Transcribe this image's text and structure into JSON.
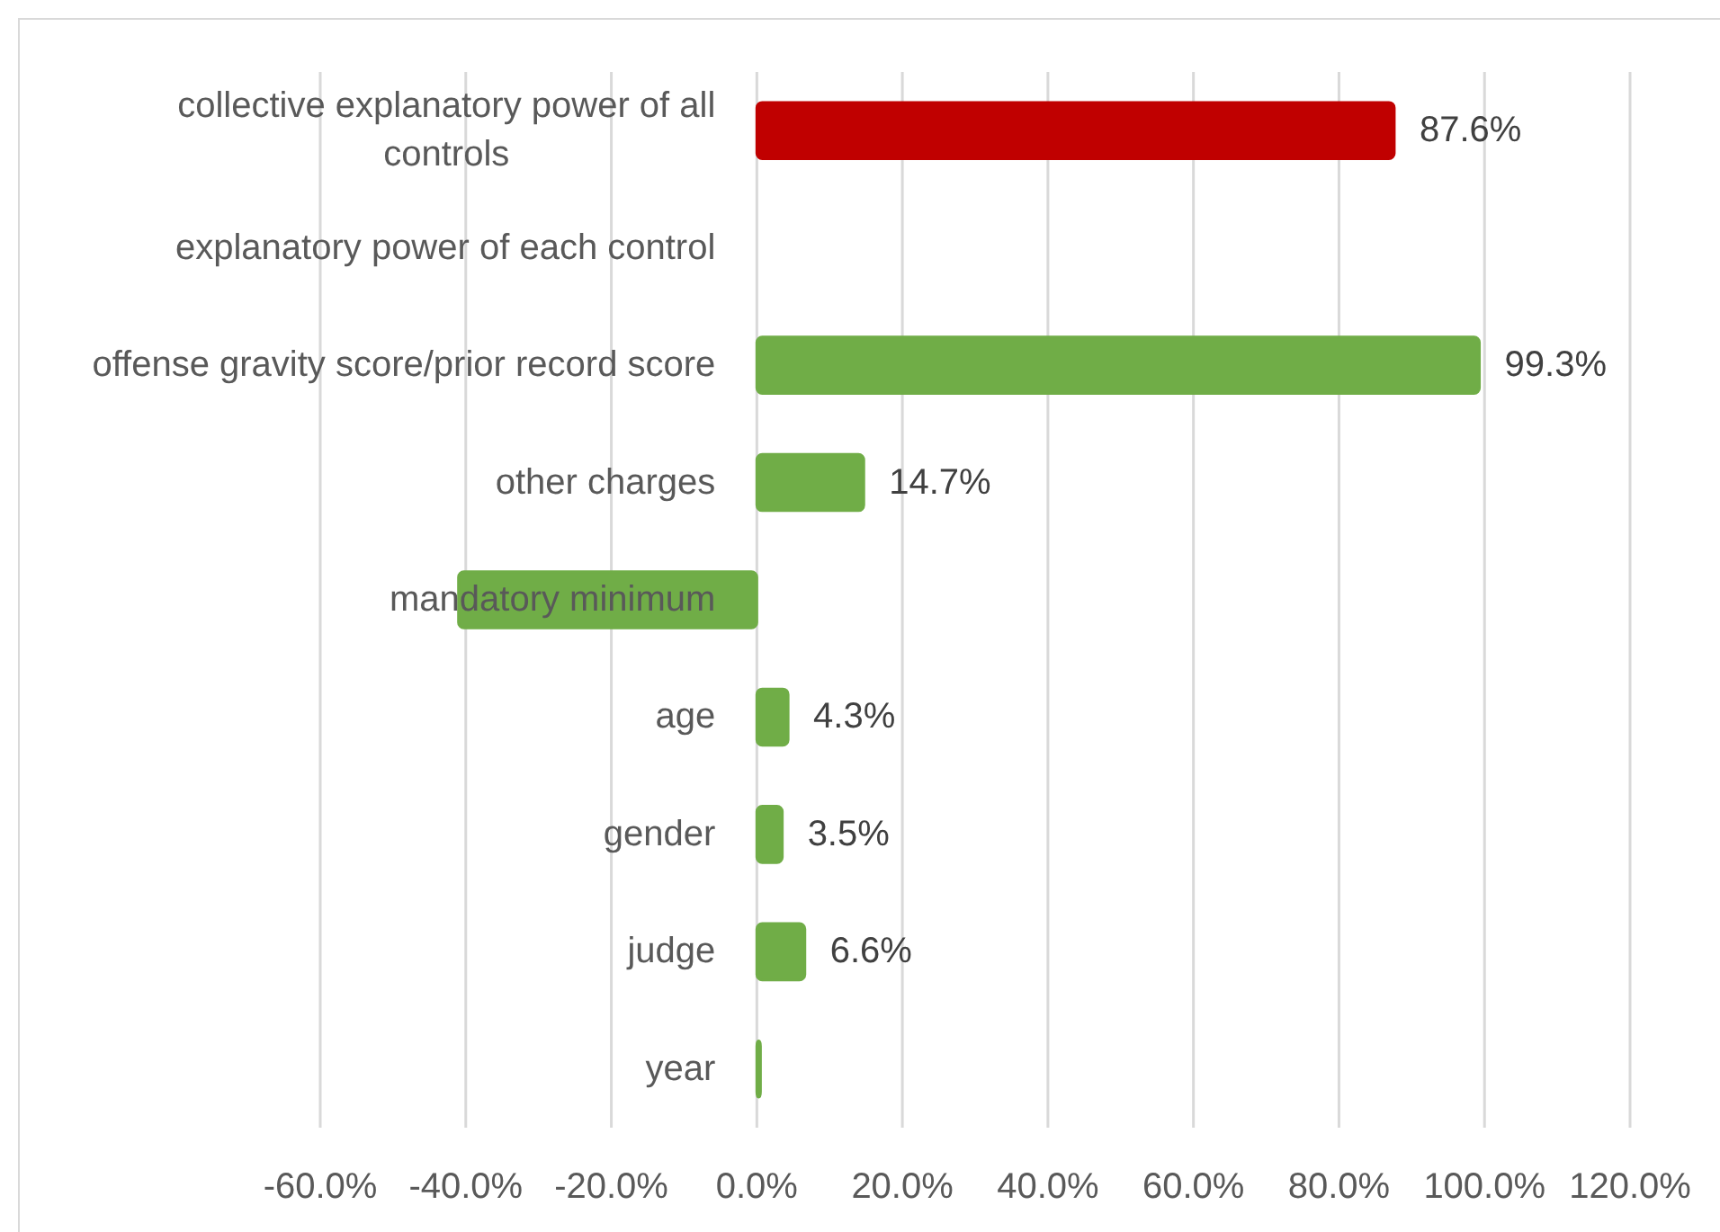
{
  "chart_data": {
    "type": "bar",
    "orientation": "horizontal",
    "categories": [
      "collective explanatory power of all controls",
      "explanatory power of each control",
      "offense gravity score/prior record score",
      "other charges",
      "mandatory minimum",
      "age",
      "gender",
      "judge",
      "year"
    ],
    "values": [
      87.6,
      null,
      99.3,
      14.7,
      -41,
      4.3,
      3.5,
      6.6,
      0.5
    ],
    "colors": [
      "#c00000",
      null,
      "#70ad47",
      "#70ad47",
      "#70ad47",
      "#70ad47",
      "#70ad47",
      "#70ad47",
      "#70ad47"
    ],
    "value_labels": [
      "87.6%",
      null,
      "99.3%",
      "14.7%",
      null,
      "4.3%",
      "3.5%",
      "6.6%",
      null
    ],
    "xlim": [
      -60,
      120
    ],
    "xticks": [
      {
        "value": -60,
        "label": "-60.0%"
      },
      {
        "value": -40,
        "label": "-40.0%"
      },
      {
        "value": -20,
        "label": "-20.0%"
      },
      {
        "value": 0,
        "label": "0.0%"
      },
      {
        "value": 20,
        "label": "20.0%"
      },
      {
        "value": 40,
        "label": "40.0%"
      },
      {
        "value": 60,
        "label": "60.0%"
      },
      {
        "value": 80,
        "label": "80.0%"
      },
      {
        "value": 100,
        "label": "100.0%"
      },
      {
        "value": 120,
        "label": "120.0%"
      }
    ],
    "grid": "x"
  }
}
